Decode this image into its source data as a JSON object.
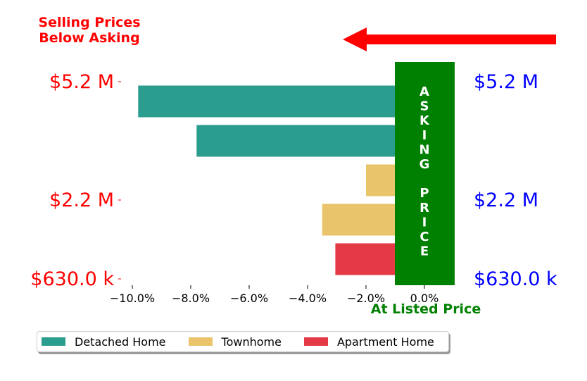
{
  "annotation": {
    "line1": "Selling Prices",
    "line2": "Below Asking",
    "color": "#ff0000"
  },
  "arrow_color": "#ff0000",
  "asking_box": {
    "letters": [
      "A",
      "S",
      "K",
      "I",
      "N",
      "G",
      "",
      "P",
      "R",
      "I",
      "C",
      "E"
    ],
    "color": "#008000",
    "text_color": "#ffffff"
  },
  "listed_label": {
    "text": "At Listed Price",
    "color": "#008000"
  },
  "chart_data": {
    "type": "bar",
    "orientation": "horizontal",
    "title": "",
    "xlabel": "",
    "ylabel": "",
    "xlim": [
      -10.5,
      0.05
    ],
    "x_ticks": [
      -10,
      -8,
      -6,
      -4,
      -2,
      0
    ],
    "x_tick_labels": [
      "−10.0%",
      "−8.0%",
      "−6.0%",
      "−4.0%",
      "−2.0%",
      "0.0%"
    ],
    "grid": false,
    "legend_position": "bottom-left",
    "bars": [
      {
        "category": "Detached Home",
        "value": -9.8
      },
      {
        "category": "Detached Home",
        "value": -7.8
      },
      {
        "category": "Townhome",
        "value": -2.0
      },
      {
        "category": "Townhome",
        "value": -3.5
      },
      {
        "category": "Apartment Home",
        "value": -3.05
      }
    ],
    "left_ticks": [
      {
        "label": "$5.2 M",
        "row": -0.5
      },
      {
        "label": "$2.2 M",
        "row": 2.5
      },
      {
        "label": "$630.0 k",
        "row": 4.5
      }
    ],
    "left_tick_color": "#ff0000",
    "right_ticks": [
      {
        "label": "$5.2 M",
        "row": -0.5
      },
      {
        "label": "$2.2 M",
        "row": 2.5
      },
      {
        "label": "$630.0 k",
        "row": 4.5
      }
    ],
    "right_tick_color": "#0000ff",
    "legend": [
      {
        "name": "Detached Home",
        "color": "#2a9d8f"
      },
      {
        "name": "Townhome",
        "color": "#e9c46a"
      },
      {
        "name": "Apartment Home",
        "color": "#e63946"
      }
    ]
  }
}
